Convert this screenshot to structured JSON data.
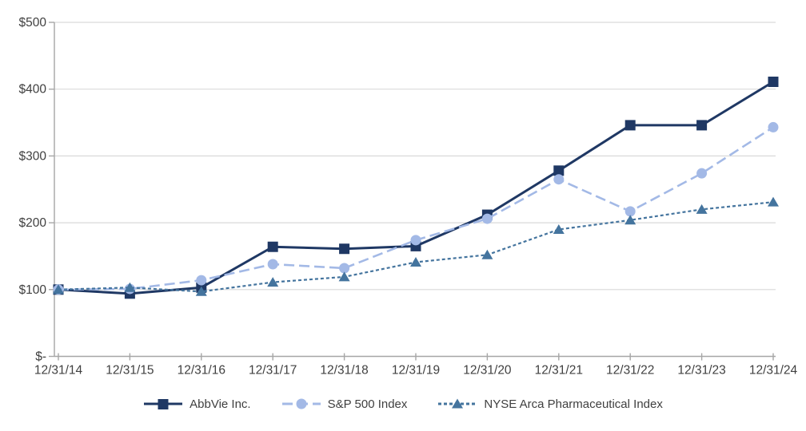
{
  "chart_data": {
    "type": "line",
    "title": "",
    "x": [
      "12/31/14",
      "12/31/15",
      "12/31/16",
      "12/31/17",
      "12/31/18",
      "12/31/19",
      "12/31/20",
      "12/31/21",
      "12/31/22",
      "12/31/23",
      "12/31/24"
    ],
    "series": [
      {
        "name": "AbbVie Inc.",
        "color": "#1F3864",
        "marker": "square",
        "line_style": "solid",
        "values": [
          100,
          94,
          103,
          164,
          161,
          165,
          212,
          278,
          346,
          346,
          411
        ]
      },
      {
        "name": "S&P 500 Index",
        "color": "#A3B9E6",
        "marker": "circle",
        "line_style": "long-dash",
        "values": [
          100,
          101,
          114,
          138,
          132,
          174,
          206,
          265,
          217,
          274,
          343
        ]
      },
      {
        "name": "NYSE Arca Pharmaceutical Index",
        "color": "#44749E",
        "marker": "triangle",
        "line_style": "short-dash",
        "values": [
          100,
          103,
          97,
          111,
          119,
          141,
          152,
          190,
          204,
          220,
          231
        ]
      }
    ],
    "y_ticks": [
      {
        "label": "$500",
        "value": 500
      },
      {
        "label": "$400",
        "value": 400
      },
      {
        "label": "$300",
        "value": 300
      },
      {
        "label": "$200",
        "value": 200
      },
      {
        "label": "$100",
        "value": 100
      },
      {
        "label": "$-",
        "value": 0
      }
    ],
    "ylim": [
      0,
      500
    ],
    "xlabel": "",
    "ylabel": "",
    "grid": "horizontal",
    "legend_position": "bottom",
    "style": {
      "gridline_color": "#D9D9D9",
      "axis_color": "#A6A6A6",
      "tick_label_color": "#404040"
    }
  }
}
